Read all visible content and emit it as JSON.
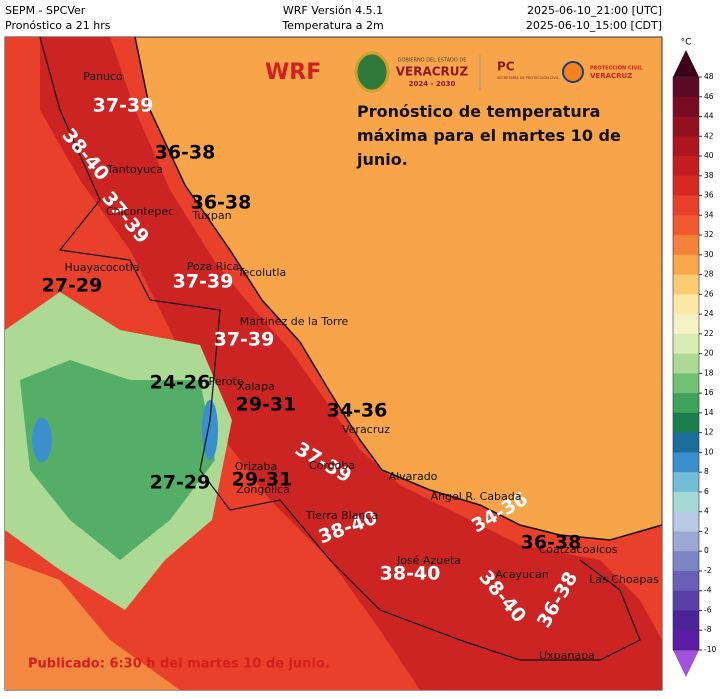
{
  "header": {
    "left": [
      "SEPM - SPCVer",
      "Pronóstico a 21 hrs"
    ],
    "center": [
      "WRF Versión 4.5.1",
      "Temperatura a 2m"
    ],
    "right": [
      "2025-06-10_21:00 [UTC]",
      "2025-06-10_15:00 [CDT]"
    ]
  },
  "logos": {
    "model": "WRF",
    "government": "GOBIERNO DEL ESTADO DE",
    "state": "VERACRUZ",
    "term": "2024 - 2030",
    "pc": "PC",
    "pc_sub": "SECRETARÍA DE PROTECCIÓN CIVIL",
    "civil": "PROTECCIÓN CIVIL",
    "civil_state": "VERACRUZ"
  },
  "forecast": "Pronóstico de temperatura máxima para el martes 10 de junio.",
  "published": "Publicado: 6:30 h del martes 10 de junio.",
  "ranges": [
    "37-39",
    "38-40",
    "36-38",
    "36-38",
    "37-39",
    "27-29",
    "37-39",
    "37-39",
    "24-26",
    "29-31",
    "34-36",
    "37-39",
    "27-29",
    "29-31",
    "38-40",
    "34-36",
    "36-38",
    "38-40",
    "38-40",
    "36-38"
  ],
  "cities": [
    "Panuco",
    "Tantoyuca",
    "Chicontepec",
    "Tuxpan",
    "Huayacocotla",
    "Poza Rica",
    "Tecolutla",
    "Martinez de la Torre",
    "Perote",
    "Xalapa",
    "Veracruz",
    "Orizaba",
    "Cordoba",
    "Zongolica",
    "Alvarado",
    "Tierra Blanca",
    "Angel R. Cabada",
    "José Azueta",
    "Acayucan",
    "Coatzacoalcos",
    "Las Choapas",
    "Uxpanapa"
  ],
  "colorbar": {
    "unit": "°C",
    "ticks": [
      48,
      46,
      44,
      42,
      40,
      38,
      36,
      34,
      32,
      30,
      28,
      26,
      24,
      22,
      20,
      18,
      16,
      14,
      12,
      10,
      8,
      6,
      4,
      2,
      0,
      -2,
      -4,
      -6,
      -8,
      -10
    ],
    "colors": [
      "#5a0a24",
      "#780c22",
      "#93101f",
      "#ad161f",
      "#c41d20",
      "#d82a23",
      "#e8402a",
      "#f05a2e",
      "#f5823a",
      "#f8a84a",
      "#fbcb72",
      "#fde7a4",
      "#f5f3c6",
      "#d9ecb2",
      "#acd994",
      "#72c173",
      "#3ea25b",
      "#1c7e4e",
      "#1c6c9c",
      "#3a8fcc",
      "#72bed8",
      "#a5d9d4",
      "#b9c8e4",
      "#9ea9d3",
      "#7d84c3",
      "#6b5fb6",
      "#5a40a6",
      "#4b2597",
      "#5c1ca6"
    ],
    "over_color": "#3d0318",
    "under_color": "#a152dc"
  }
}
